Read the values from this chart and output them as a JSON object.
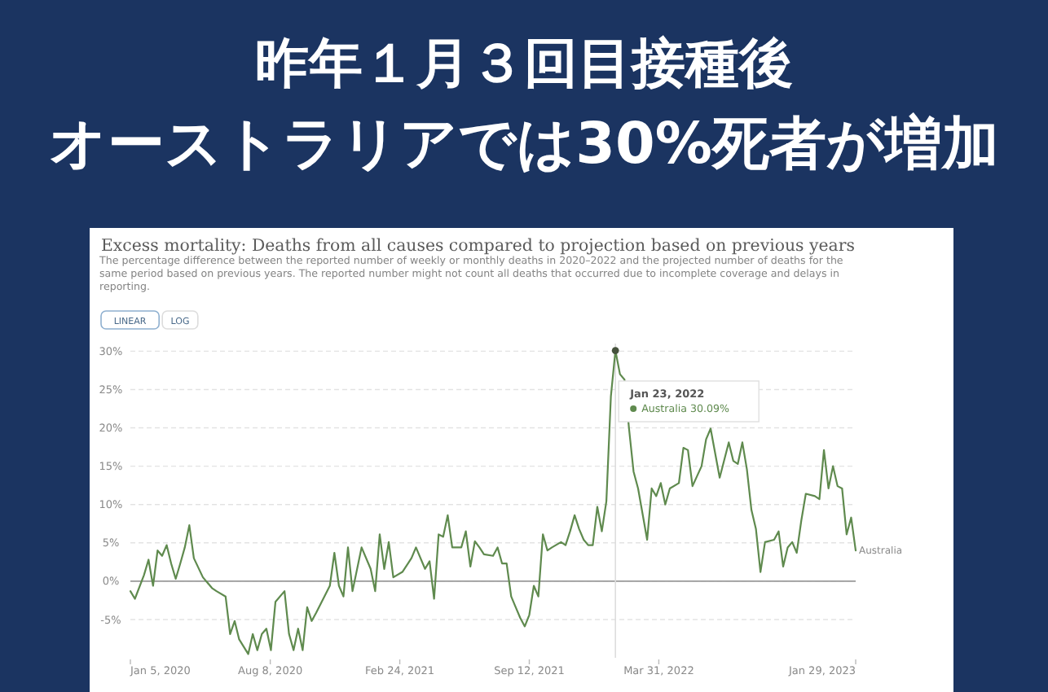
{
  "chart_data": {
    "type": "line",
    "title": "昨年１月３回目接種後",
    "subtitle": "オーストラリアでは30%死者が増加",
    "annotations": [
      "Excess mortality: Deaths from all causes compared to projection based on previous years",
      "The percentage difference between the reported number of weekly or monthly deaths in 2020–2022 and the projected number of deaths for the same period based on previous years. The reported number might not count all deaths that occurred due to incomplete coverage and delays in reporting.",
      "LINEAR",
      "LOG",
      "Jan 23, 2022",
      "Australia 30.09%"
    ],
    "x": [
      "2020-01-05",
      "2020-01-12",
      "2020-01-26",
      "2020-02-02",
      "2020-02-09",
      "2020-02-16",
      "2020-02-23",
      "2020-03-01",
      "2020-03-08",
      "2020-03-15",
      "2020-03-22",
      "2020-03-29",
      "2020-04-05",
      "2020-04-12",
      "2020-04-26",
      "2020-05-10",
      "2020-05-17",
      "2020-05-31",
      "2020-06-07",
      "2020-06-14",
      "2020-06-21",
      "2020-07-05",
      "2020-07-12",
      "2020-07-19",
      "2020-07-26",
      "2020-08-02",
      "2020-08-09",
      "2020-08-16",
      "2020-08-30",
      "2020-09-06",
      "2020-09-13",
      "2020-09-20",
      "2020-09-27",
      "2020-10-04",
      "2020-10-11",
      "2020-10-18",
      "2020-11-08",
      "2020-11-15",
      "2020-11-22",
      "2020-11-29",
      "2020-12-06",
      "2020-12-13",
      "2020-12-27",
      "2021-01-10",
      "2021-01-17",
      "2021-01-24",
      "2021-01-31",
      "2021-02-07",
      "2021-02-14",
      "2021-02-28",
      "2021-03-14",
      "2021-03-21",
      "2021-04-04",
      "2021-04-11",
      "2021-04-18",
      "2021-04-25",
      "2021-05-02",
      "2021-05-09",
      "2021-05-16",
      "2021-05-30",
      "2021-06-06",
      "2021-06-13",
      "2021-06-20",
      "2021-06-27",
      "2021-07-04",
      "2021-07-18",
      "2021-07-25",
      "2021-08-01",
      "2021-08-08",
      "2021-08-15",
      "2021-08-22",
      "2021-08-29",
      "2021-09-05",
      "2021-09-12",
      "2021-09-19",
      "2021-09-26",
      "2021-10-03",
      "2021-10-10",
      "2021-10-17",
      "2021-10-31",
      "2021-11-07",
      "2021-11-14",
      "2021-11-21",
      "2021-11-28",
      "2021-12-05",
      "2021-12-12",
      "2021-12-19",
      "2021-12-26",
      "2022-01-02",
      "2022-01-09",
      "2022-01-16",
      "2022-01-23",
      "2022-01-30",
      "2022-02-06",
      "2022-02-13",
      "2022-02-20",
      "2022-02-27",
      "2022-03-13",
      "2022-03-20",
      "2022-03-27",
      "2022-04-03",
      "2022-04-10",
      "2022-04-17",
      "2022-05-01",
      "2022-05-08",
      "2022-05-15",
      "2022-05-22",
      "2022-06-05",
      "2022-06-12",
      "2022-06-19",
      "2022-07-03",
      "2022-07-17",
      "2022-07-24",
      "2022-07-31",
      "2022-08-07",
      "2022-08-14",
      "2022-08-21",
      "2022-08-28",
      "2022-09-04",
      "2022-09-11",
      "2022-09-25",
      "2022-10-02",
      "2022-10-09",
      "2022-10-16",
      "2022-10-23",
      "2022-10-30",
      "2022-11-06",
      "2022-11-13",
      "2022-11-27",
      "2022-12-04",
      "2022-12-11",
      "2022-12-18",
      "2022-12-25",
      "2023-01-01",
      "2023-01-08",
      "2023-01-15",
      "2023-01-22",
      "2023-01-29"
    ],
    "series": [
      {
        "name": "Australia",
        "color": "#5f8a4e",
        "values": [
          -1.3,
          -2.3,
          0.8,
          2.8,
          -0.6,
          4.0,
          3.3,
          4.7,
          2.3,
          0.3,
          2.3,
          4.4,
          7.3,
          3.0,
          0.5,
          -0.9,
          -1.3,
          -2.0,
          -6.9,
          -5.2,
          -7.6,
          -9.5,
          -6.9,
          -9.0,
          -6.9,
          -6.2,
          -9.0,
          -2.7,
          -1.3,
          -6.9,
          -9.0,
          -6.2,
          -9.0,
          -3.4,
          -5.2,
          -4.1,
          -0.6,
          3.7,
          -0.6,
          -2.0,
          4.4,
          -1.3,
          4.4,
          1.6,
          -1.3,
          6.1,
          1.6,
          5.1,
          0.5,
          1.2,
          3.0,
          4.4,
          1.6,
          2.6,
          -2.3,
          6.1,
          5.8,
          8.6,
          4.4,
          4.4,
          6.5,
          1.9,
          5.2,
          4.4,
          3.5,
          3.3,
          4.4,
          2.3,
          2.3,
          -2.0,
          -3.4,
          -4.8,
          -5.9,
          -4.4,
          -0.6,
          -2.0,
          6.1,
          4.0,
          4.4,
          5.1,
          4.7,
          6.5,
          8.6,
          6.8,
          5.4,
          4.7,
          4.7,
          9.7,
          6.5,
          10.4,
          24.1,
          30.09,
          27.0,
          26.3,
          19.9,
          14.3,
          12.1,
          5.4,
          12.1,
          11.1,
          12.8,
          10.0,
          12.1,
          12.8,
          17.4,
          17.1,
          12.4,
          15.0,
          18.5,
          19.9,
          13.5,
          18.1,
          15.7,
          15.3,
          18.1,
          14.6,
          9.3,
          6.8,
          1.2,
          5.1,
          5.4,
          6.5,
          1.9,
          4.4,
          5.1,
          3.7,
          7.9,
          11.4,
          11.1,
          10.7,
          17.1,
          12.1,
          15.0,
          12.4,
          12.1,
          6.1,
          8.3,
          4.0
        ]
      },
      {
        "type": "scatter",
        "color": "#45523c",
        "x": [
          "2022-01-23"
        ],
        "values": [
          30.09
        ]
      }
    ],
    "xlim": [
      "2020-01-05",
      "2023-01-29"
    ],
    "xticks": [
      {
        "value": "2020-01-05",
        "label": "Jan 5, 2020"
      },
      {
        "value": "2020-08-08",
        "label": "Aug 8, 2020"
      },
      {
        "value": "2021-02-24",
        "label": "Feb 24, 2021"
      },
      {
        "value": "2021-09-12",
        "label": "Sep 12, 2021"
      },
      {
        "value": "2022-03-31",
        "label": "Mar 31, 2022"
      },
      {
        "value": "2023-01-29",
        "label": "Jan 29, 2023"
      }
    ],
    "ylim": [
      -10,
      31
    ],
    "yticks": [
      {
        "value": -5,
        "label": "-5%"
      },
      {
        "value": 0,
        "label": "0%"
      },
      {
        "value": 5,
        "label": "5%"
      },
      {
        "value": 10,
        "label": "10%"
      },
      {
        "value": 15,
        "label": "15%"
      },
      {
        "value": 20,
        "label": "20%"
      },
      {
        "value": 25,
        "label": "25%"
      },
      {
        "value": 30,
        "label": "30%"
      }
    ],
    "grid": "y",
    "ref_lines": [
      {
        "axis": "y",
        "value": 0,
        "color": "#9a9a9a"
      },
      {
        "axis": "x",
        "value": "2022-01-23",
        "color": "#dddddd"
      }
    ],
    "line_style": "solid",
    "legend": false
  }
}
